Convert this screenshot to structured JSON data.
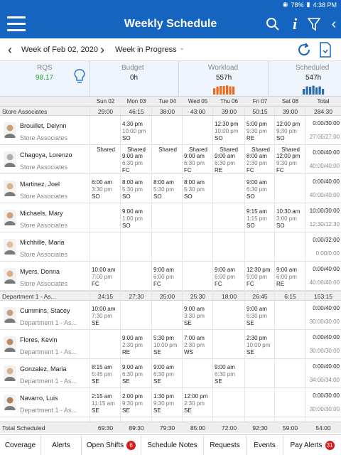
{
  "status_bar": {
    "battery": "78%",
    "time": "4:38 PM"
  },
  "app": {
    "title": "Weekly Schedule"
  },
  "week": {
    "label": "Week of Feb 02, 2020",
    "status": "Week in Progress"
  },
  "summary": {
    "rqs": {
      "label": "RQS",
      "value": "98.17",
      "color": "#2e9e2e"
    },
    "budget": {
      "label": "Budget",
      "value": "0h"
    },
    "workload": {
      "label": "Workload",
      "value": "557h",
      "bar_color": "#f06a1e"
    },
    "scheduled": {
      "label": "Scheduled",
      "value": "547h",
      "bar_color": "#2f6db3"
    }
  },
  "days": [
    "Sun 02",
    "Mon 03",
    "Tue 04",
    "Wed 05",
    "Thu 06",
    "Fri 07",
    "Sat 08",
    "Total"
  ],
  "sections": [
    {
      "name": "Store Associates",
      "values": [
        "29:00",
        "46:15",
        "38:00",
        "43:00",
        "39:00",
        "50:15",
        "39:00",
        "284:30"
      ]
    },
    {
      "name": "Department 1 - As...",
      "values": [
        "24:15",
        "27:30",
        "25:00",
        "25:30",
        "18:00",
        "26:45",
        "6:15",
        "153:15"
      ]
    }
  ],
  "employees": [
    {
      "name": "Brouillet, Delynn",
      "role": "Store Associates",
      "shifts": [
        null,
        {
          "start": "4:30 pm",
          "end": "10:00 pm",
          "dept": "SO"
        },
        null,
        null,
        {
          "start": "12:30 pm",
          "end": "10:00 pm",
          "dept": "SO"
        },
        {
          "start": "5:00 pm",
          "end": "9:30 pm",
          "dept": "RE"
        },
        {
          "start": "12:00 pm",
          "end": "9:30 pm",
          "dept": "SO"
        }
      ],
      "shared": [],
      "total": "0:00/30:00",
      "total2": "27:00/27:00"
    },
    {
      "name": "Chagoya, Lorenzo",
      "role": "Store Associates",
      "shifts": [
        null,
        {
          "start": "9:00 am",
          "end": "6:30 pm",
          "dept": "FC"
        },
        null,
        {
          "start": "9:00 am",
          "end": "6:30 pm",
          "dept": "FC"
        },
        {
          "start": "9:00 am",
          "end": "6:30 pm",
          "dept": "RE"
        },
        {
          "start": "8:00 am",
          "end": "2:30 pm",
          "dept": "FC"
        },
        {
          "start": "12:00 pm",
          "end": "9:30 pm",
          "dept": "FC"
        }
      ],
      "shared": [
        "Shared",
        "Shared",
        "Shared",
        "Shared",
        "Shared",
        "Shared",
        "Shared"
      ],
      "total": "0:00/40:00",
      "total2": "40:00/40:00"
    },
    {
      "name": "Martinez, Joel",
      "role": "Store Associates",
      "shifts": [
        {
          "start": "6:00 am",
          "end": "3:30 pm",
          "dept": "SO"
        },
        {
          "start": "8:00 am",
          "end": "5:30 pm",
          "dept": "SO"
        },
        {
          "start": "8:00 am",
          "end": "5:30 pm",
          "dept": "SO"
        },
        {
          "start": "8:00 am",
          "end": "5:30 pm",
          "dept": "SO"
        },
        null,
        {
          "start": "9:00 am",
          "end": "6:30 pm",
          "dept": "SO"
        },
        null
      ],
      "shared": [],
      "total": "0:00/40:00",
      "total2": "40:00/40:00"
    },
    {
      "name": "Michaels, Mary",
      "role": "Store Associates",
      "shifts": [
        null,
        {
          "start": "9:00 am",
          "end": "1:00 pm",
          "dept": "SO"
        },
        null,
        null,
        null,
        {
          "start": "9:15 am",
          "end": "1:15 pm",
          "dept": "SO"
        },
        {
          "start": "10:30 am",
          "end": "3:00 pm",
          "dept": "SO"
        }
      ],
      "shared": [],
      "total": "10:00/30:00",
      "total2": "12:30/12:30"
    },
    {
      "name": "Michhille, Maria",
      "role": "Store Associates",
      "shifts": [
        null,
        null,
        null,
        null,
        null,
        null,
        null
      ],
      "shared": [],
      "total": "0:00/32:00",
      "total2": "0:00/0:00"
    },
    {
      "name": "Myers, Donna",
      "role": "Store Associates",
      "shifts": [
        {
          "start": "10:00 am",
          "end": "7:00 pm",
          "dept": "FC"
        },
        null,
        {
          "start": "9:00 am",
          "end": "6:00 pm",
          "dept": "FC"
        },
        null,
        {
          "start": "9:00 am",
          "end": "6:00 pm",
          "dept": "FC"
        },
        {
          "start": "12:30 pm",
          "end": "9:00 pm",
          "dept": "FC"
        },
        {
          "start": "9:00 am",
          "end": "6:00 pm",
          "dept": "RE"
        }
      ],
      "shared": [],
      "total": "0:00/40:00",
      "total2": "40:00/40:00"
    },
    {
      "name": "Cummins, Stacey",
      "role": "Department 1 - As...",
      "shifts": [
        {
          "start": "10:00 am",
          "end": "7:30 pm",
          "dept": "SE"
        },
        null,
        null,
        {
          "start": "9:00 am",
          "end": "3:30 pm",
          "dept": "SE"
        },
        null,
        {
          "start": "9:00 am",
          "end": "6:30 pm",
          "dept": "SE"
        },
        null
      ],
      "shared": [],
      "total": "0:00/40:00",
      "total2": "30:00/30:00"
    },
    {
      "name": "Flores, Kevin",
      "role": "Department 1 - As...",
      "shifts": [
        null,
        {
          "start": "9:00 am",
          "end": "2:30 pm",
          "dept": "RE"
        },
        {
          "start": "5:30 pm",
          "end": "10:00 pm",
          "dept": "SE"
        },
        {
          "start": "7:00 am",
          "end": "2:30 pm",
          "dept": "WS"
        },
        null,
        {
          "start": "2:30 pm",
          "end": "10:00 pm",
          "dept": "SE"
        },
        null
      ],
      "shared": [],
      "total": "0:00/40:00",
      "total2": "30:00/30:00"
    },
    {
      "name": "Gonzalez, Maria",
      "role": "Department 1 - As...",
      "shifts": [
        {
          "start": "8:15 am",
          "end": "5:45 pm",
          "dept": "SE"
        },
        {
          "start": "9:00 am",
          "end": "6:30 pm",
          "dept": "SE"
        },
        {
          "start": "9:00 am",
          "end": "6:30 pm",
          "dept": "SE"
        },
        null,
        {
          "start": "9:00 am",
          "end": "6:30 pm",
          "dept": "SE"
        },
        null,
        null
      ],
      "shared": [],
      "total": "0:00/40:00",
      "total2": "34:00/34:00"
    },
    {
      "name": "Navarro, Luis",
      "role": "Department 1 - As...",
      "shifts": [
        {
          "start": "2:15 am",
          "end": "11:15 am",
          "dept": "SE"
        },
        {
          "start": "2:00 pm",
          "end": "9:30 pm",
          "dept": "SE"
        },
        {
          "start": "1:30 pm",
          "end": "9:30 pm",
          "dept": "SE"
        },
        {
          "start": "12:00 pm",
          "end": "2:30 pm",
          "dept": "SE"
        },
        null,
        null,
        null
      ],
      "shared": [],
      "total": "0:00/30:00",
      "total2": "30:00/30:00"
    }
  ],
  "total_scheduled": {
    "label": "Total Scheduled",
    "values": [
      "69:30",
      "89:30",
      "79:30",
      "85:00",
      "72:00",
      "92:30",
      "59:00",
      "54:00"
    ]
  },
  "tabs": [
    {
      "label": "Coverage"
    },
    {
      "label": "Alerts"
    },
    {
      "label": "Open Shifts",
      "badge": "6"
    },
    {
      "label": "Schedule Notes"
    },
    {
      "label": "Requests"
    },
    {
      "label": "Events"
    },
    {
      "label": "Pay Alerts",
      "badge": "31"
    }
  ],
  "workload_bars": [
    0.55,
    0.7,
    0.75,
    0.75,
    0.8,
    0.72,
    0.7
  ],
  "scheduled_bars": [
    0.5,
    0.72,
    0.68,
    0.78,
    0.62,
    0.72,
    0.5
  ]
}
